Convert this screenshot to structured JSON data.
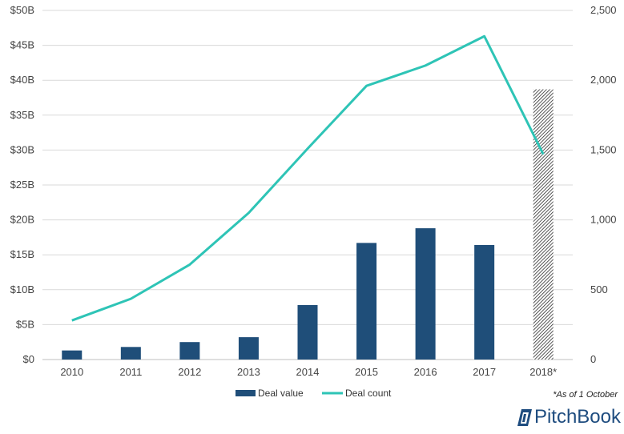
{
  "chart_data": {
    "type": "bar",
    "categories": [
      "2010",
      "2011",
      "2012",
      "2013",
      "2014",
      "2015",
      "2016",
      "2017",
      "2018*"
    ],
    "series": [
      {
        "name": "Deal value",
        "kind": "bar",
        "axis": "left",
        "values": [
          1.3,
          1.8,
          2.5,
          3.2,
          7.8,
          16.7,
          18.8,
          16.4,
          38.7
        ],
        "color": "#1f4e79",
        "hatched_index": 8
      },
      {
        "name": "Deal count",
        "kind": "line",
        "axis": "right",
        "values": [
          280,
          435,
          680,
          1050,
          1510,
          1960,
          2105,
          2315,
          1470
        ],
        "color": "#2ec4b6"
      }
    ],
    "y_left": {
      "ylim": [
        0,
        50
      ],
      "ticks": [
        0,
        5,
        10,
        15,
        20,
        25,
        30,
        35,
        40,
        45,
        50
      ],
      "tick_labels": [
        "$0",
        "$5B",
        "$10B",
        "$15B",
        "$20B",
        "$25B",
        "$30B",
        "$35B",
        "$40B",
        "$45B",
        "$50B"
      ]
    },
    "y_right": {
      "ylim": [
        0,
        2500
      ],
      "ticks": [
        0,
        500,
        1000,
        1500,
        2000,
        2500
      ],
      "tick_labels": [
        "0",
        "500",
        "1,000",
        "1,500",
        "2,000",
        "2,500"
      ]
    },
    "grid": true,
    "legend": {
      "position": "bottom",
      "entries": [
        "Deal value",
        "Deal count"
      ]
    }
  },
  "footnote": "*As of 1 October",
  "brand": "PitchBook",
  "colors": {
    "grid": "#d9d9d9",
    "axis": "#bfbfbf",
    "brand": "#1e4c7f"
  }
}
